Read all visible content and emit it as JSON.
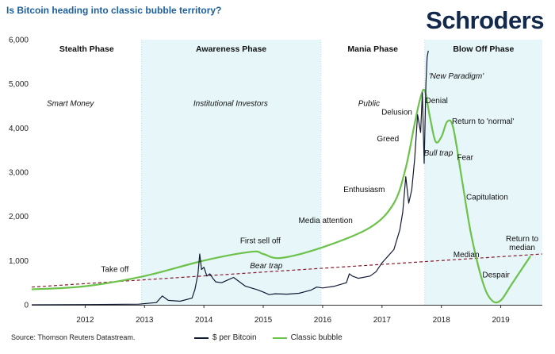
{
  "header": {
    "title": "Is Bitcoin heading into classic bubble territory?",
    "logo": "Schroders"
  },
  "footer": {
    "source": "Source: Thomson Reuters Datastream."
  },
  "colors": {
    "bitcoin": "#111a33",
    "bubble": "#6cc24a",
    "median": "#8b1a2b",
    "phase_shade": "#e6f6f9",
    "axis": "#333333",
    "grid_dots": "#bcdde6"
  },
  "chart_data": {
    "type": "line",
    "title": "Is Bitcoin heading into classic bubble territory?",
    "xlim": [
      2011.1,
      2019.7
    ],
    "ylim": [
      0,
      6000
    ],
    "yticks": [
      0,
      1000,
      2000,
      3000,
      4000,
      5000,
      6000
    ],
    "ytick_labels": [
      "0",
      "1,000",
      "2,000",
      "3,000",
      "4,000",
      "5,000",
      "6,000"
    ],
    "xticks": [
      2012,
      2013,
      2014,
      2015,
      2016,
      2017,
      2018,
      2019
    ],
    "xtick_labels": [
      "2012",
      "2013",
      "2014",
      "2015",
      "2016",
      "2017",
      "2018",
      "2019"
    ],
    "phases": [
      {
        "label": "Stealth Phase",
        "start": 2011.1,
        "end": 2012.95,
        "shaded": false
      },
      {
        "label": "Awareness Phase",
        "start": 2012.95,
        "end": 2015.97,
        "shaded": true
      },
      {
        "label": "Mania Phase",
        "start": 2015.97,
        "end": 2017.72,
        "shaded": false
      },
      {
        "label": "Blow Off Phase",
        "start": 2017.72,
        "end": 2019.7,
        "shaded": true
      }
    ],
    "series": [
      {
        "name": "$ per Bitcoin",
        "x": [
          2011.1,
          2012.0,
          2012.9,
          2013.2,
          2013.3,
          2013.4,
          2013.6,
          2013.8,
          2013.85,
          2013.9,
          2013.93,
          2013.96,
          2014.0,
          2014.05,
          2014.1,
          2014.15,
          2014.2,
          2014.3,
          2014.4,
          2014.5,
          2014.6,
          2014.7,
          2014.8,
          2014.9,
          2015.0,
          2015.1,
          2015.2,
          2015.4,
          2015.6,
          2015.8,
          2015.9,
          2016.0,
          2016.2,
          2016.4,
          2016.45,
          2016.5,
          2016.6,
          2016.8,
          2016.9,
          2017.0,
          2017.1,
          2017.2,
          2017.3,
          2017.35,
          2017.4,
          2017.45,
          2017.5,
          2017.55,
          2017.6,
          2017.65,
          2017.68,
          2017.71,
          2017.74,
          2017.76,
          2017.78
        ],
        "values": [
          0,
          5,
          15,
          50,
          200,
          100,
          80,
          150,
          350,
          700,
          1150,
          800,
          850,
          650,
          700,
          600,
          520,
          500,
          560,
          620,
          520,
          420,
          380,
          340,
          290,
          230,
          250,
          240,
          260,
          330,
          400,
          380,
          420,
          500,
          700,
          650,
          600,
          650,
          750,
          950,
          1100,
          1250,
          1700,
          2100,
          2900,
          2300,
          2600,
          3300,
          4300,
          3900,
          4800,
          3200,
          5000,
          5600,
          5750
        ]
      },
      {
        "name": "Classic bubble",
        "x": [
          2011.1,
          2012.0,
          2013.0,
          2014.0,
          2014.8,
          2015.0,
          2015.3,
          2016.0,
          2016.8,
          2017.2,
          2017.4,
          2017.55,
          2017.65,
          2017.72,
          2017.8,
          2017.9,
          2018.0,
          2018.1,
          2018.2,
          2018.35,
          2018.5,
          2018.7,
          2018.85,
          2019.0,
          2019.2,
          2019.5
        ],
        "values": [
          350,
          420,
          650,
          1000,
          1200,
          1150,
          1060,
          1300,
          1750,
          2300,
          3100,
          4100,
          4700,
          4850,
          4300,
          3700,
          3800,
          4150,
          4000,
          2800,
          1600,
          500,
          100,
          100,
          500,
          1100
        ]
      },
      {
        "name": "Median",
        "x": [
          2011.1,
          2019.7
        ],
        "values": [
          400,
          1150
        ]
      }
    ],
    "annotations": [
      {
        "text": "Smart Money",
        "x": 2011.75,
        "y": 4500,
        "italic": true
      },
      {
        "text": "Institutional Investors",
        "x": 2014.45,
        "y": 4500,
        "italic": true
      },
      {
        "text": "Public",
        "x": 2016.78,
        "y": 4500,
        "italic": true
      },
      {
        "text": "Take off",
        "x": 2012.5,
        "y": 750,
        "italic": false
      },
      {
        "text": "First sell off",
        "x": 2014.95,
        "y": 1390,
        "italic": false
      },
      {
        "text": "Bear trap",
        "x": 2015.05,
        "y": 830,
        "italic": true
      },
      {
        "text": "Media attention",
        "x": 2016.05,
        "y": 1850,
        "italic": false
      },
      {
        "text": "Enthusiasm",
        "x": 2016.7,
        "y": 2550,
        "italic": false
      },
      {
        "text": "Greed",
        "x": 2017.1,
        "y": 3700,
        "italic": false
      },
      {
        "text": "Delusion",
        "x": 2017.25,
        "y": 4300,
        "italic": false
      },
      {
        "text": "'New Paradigm'",
        "x": 2018.25,
        "y": 5120,
        "italic": true
      },
      {
        "text": "Denial",
        "x": 2017.92,
        "y": 4560,
        "italic": false
      },
      {
        "text": "Return to 'normal'",
        "x": 2018.7,
        "y": 4100,
        "italic": false
      },
      {
        "text": "Bull trap",
        "x": 2017.95,
        "y": 3380,
        "italic": true
      },
      {
        "text": "Fear",
        "x": 2018.4,
        "y": 3280,
        "italic": false
      },
      {
        "text": "Capitulation",
        "x": 2018.77,
        "y": 2380,
        "italic": false
      },
      {
        "text": "Median",
        "x": 2018.42,
        "y": 1080,
        "italic": false
      },
      {
        "text": "Despair",
        "x": 2018.92,
        "y": 620,
        "italic": false
      },
      {
        "text": "Return to",
        "x": 2019.36,
        "y": 1440,
        "italic": false
      },
      {
        "text": "median",
        "x": 2019.36,
        "y": 1240,
        "italic": false
      }
    ]
  }
}
